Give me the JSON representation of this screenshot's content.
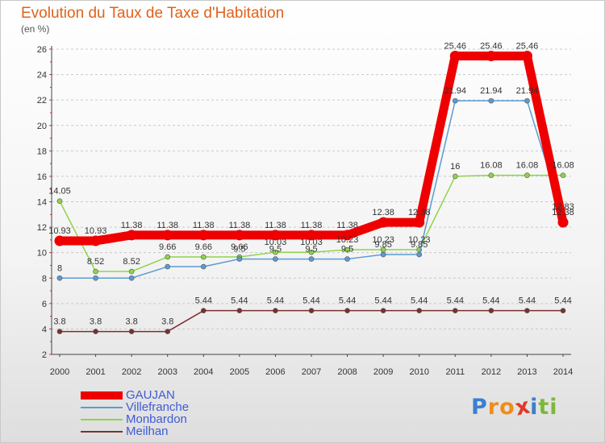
{
  "title": "Evolution du Taux de Taxe d'Habitation",
  "subtitle": "(en %)",
  "logo": {
    "letters": [
      "P",
      "r",
      "o",
      "x",
      "i",
      "t",
      "i"
    ],
    "colors": [
      "#3a7fd0",
      "#f08c1a",
      "#f08c1a",
      "#e03a2a",
      "#3a7fd0",
      "#7cb83a",
      "#7cb83a"
    ]
  },
  "chart_data": {
    "type": "line",
    "x": [
      "2000",
      "2001",
      "2002",
      "2003",
      "2004",
      "2005",
      "2006",
      "2007",
      "2008",
      "2009",
      "2010",
      "2011",
      "2012",
      "2013",
      "2014"
    ],
    "ylim": [
      2,
      26
    ],
    "yticks": [
      2,
      4,
      6,
      8,
      10,
      12,
      14,
      16,
      18,
      20,
      22,
      24,
      26
    ],
    "grid": "horizontal-dashed",
    "legend": "bottom-left",
    "series": [
      {
        "name": "GAUJAN",
        "color": "#ee0000",
        "width": 11,
        "values": [
          10.93,
          10.93,
          11.38,
          11.38,
          11.38,
          11.38,
          11.38,
          11.38,
          11.38,
          12.38,
          12.38,
          25.46,
          25.46,
          25.46,
          12.38
        ],
        "labels": [
          "10.93",
          "10.93",
          "11.38",
          "11.38",
          "11.38",
          "11.38",
          "11.38",
          "11.38",
          "11.38",
          "12.38",
          "12.38",
          "25.46",
          "25.46",
          "25.46",
          "12.38"
        ]
      },
      {
        "name": "Villefranche",
        "color": "#5b9bd5",
        "width": 1.5,
        "values": [
          8,
          8,
          8,
          8.9,
          8.9,
          9.5,
          9.5,
          9.5,
          9.5,
          9.85,
          9.85,
          21.94,
          21.94,
          21.94,
          12.83
        ],
        "labels": [
          "8",
          "",
          "",
          "",
          "",
          "9.5",
          "9.5",
          "9.5",
          "9.5",
          "9.85",
          "9.85",
          "21.94",
          "21.94",
          "21.94",
          "12.83"
        ]
      },
      {
        "name": "Monbardon",
        "color": "#8fd44a",
        "width": 1.5,
        "values": [
          14.05,
          8.52,
          8.52,
          9.66,
          9.66,
          9.66,
          10.03,
          10.03,
          10.23,
          10.23,
          10.23,
          16,
          16.08,
          16.08,
          16.08
        ],
        "labels": [
          "14.05",
          "8.52",
          "8.52",
          "9.66",
          "9.66",
          "9.66",
          "10.03",
          "10.03",
          "10.23",
          "10.23",
          "10.23",
          "16",
          "16.08",
          "16.08",
          "16.08"
        ]
      },
      {
        "name": "Meilhan",
        "color": "#7a3030",
        "width": 1.5,
        "values": [
          3.8,
          3.8,
          3.8,
          3.8,
          5.44,
          5.44,
          5.44,
          5.44,
          5.44,
          5.44,
          5.44,
          5.44,
          5.44,
          5.44,
          5.44
        ],
        "labels": [
          "3.8",
          "3.8",
          "3.8",
          "3.8",
          "5.44",
          "5.44",
          "5.44",
          "5.44",
          "5.44",
          "5.44",
          "5.44",
          "5.44",
          "5.44",
          "5.44",
          "5.44"
        ]
      }
    ]
  }
}
